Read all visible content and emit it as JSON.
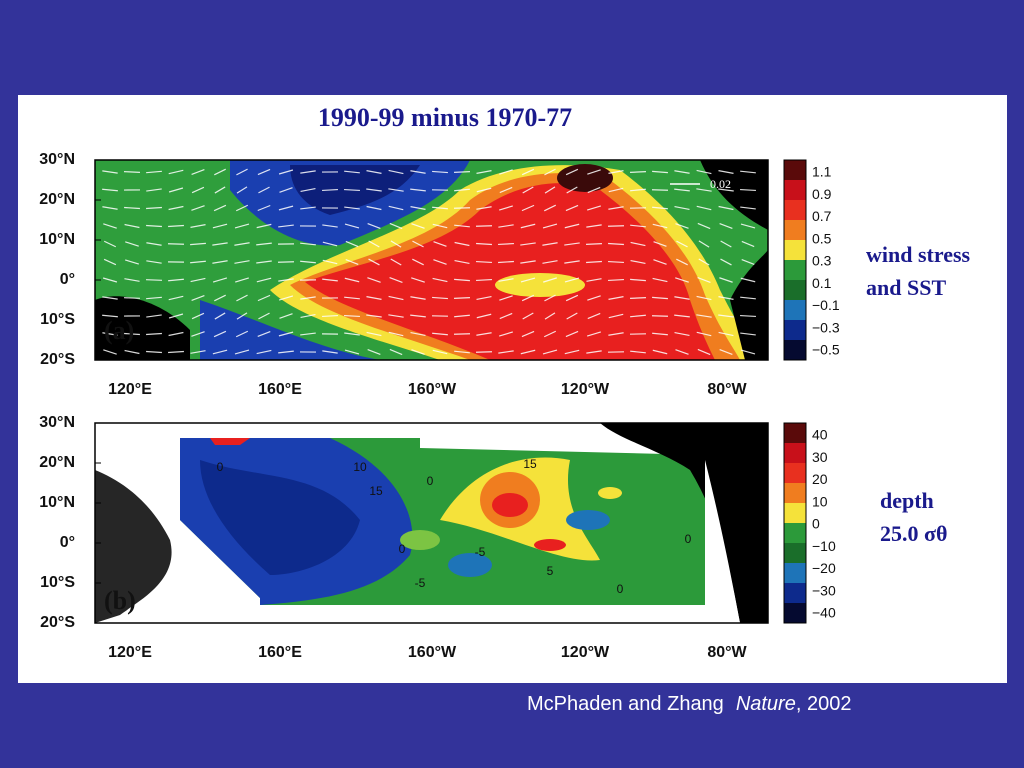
{
  "title": "1990-99 minus 1970-77",
  "panels": [
    {
      "label": "(a)",
      "y_labels": [
        "30°N",
        "20°N",
        "10°N",
        "0°",
        "10°S",
        "20°S"
      ],
      "x_labels": [
        "120°E",
        "160°E",
        "160°W",
        "120°W",
        "80°W"
      ],
      "colorbar": [
        "1.1",
        "0.9",
        "0.7",
        "0.5",
        "0.3",
        "0.1",
        "−0.1",
        "−0.3",
        "−0.5"
      ],
      "side_label": [
        "wind stress",
        "and SST"
      ],
      "vector_scale": "0.02"
    },
    {
      "label": "(b)",
      "y_labels": [
        "30°N",
        "20°N",
        "10°N",
        "0°",
        "10°S",
        "20°S"
      ],
      "x_labels": [
        "120°E",
        "160°E",
        "160°W",
        "120°W",
        "80°W"
      ],
      "colorbar": [
        "40",
        "30",
        "20",
        "10",
        "0",
        "−10",
        "−20",
        "−30",
        "−40"
      ],
      "side_label": [
        "depth",
        "25.0 σθ"
      ],
      "contour_labels": [
        "0",
        "10",
        "15",
        "0",
        "15",
        "0",
        "-5",
        "5",
        "0",
        "-5",
        "0"
      ]
    }
  ],
  "caption": {
    "authors": "McPhaden and Zhang",
    "journal": "Nature",
    "year": ", 2002"
  }
}
